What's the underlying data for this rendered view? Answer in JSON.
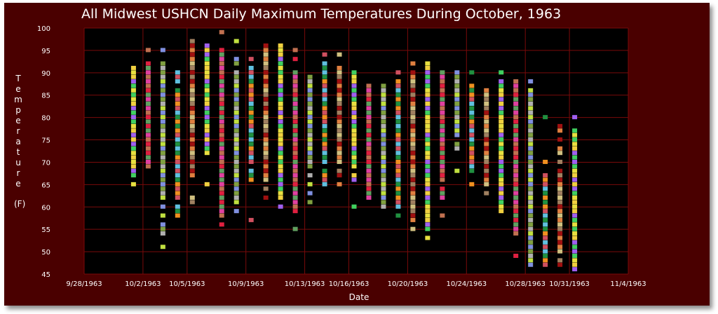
{
  "chart_data": {
    "type": "scatter",
    "title": "All Midwest USHCN Daily Maximum Temperatures During October, 1963",
    "xlabel": "Date",
    "ylabel_chars": [
      "T",
      "e",
      "m",
      "p",
      "e",
      "r",
      "a",
      "t",
      "u",
      "r",
      "e"
    ],
    "ylabel_unit": "(F)",
    "xlim": [
      "1963-09-28",
      "1963-11-04"
    ],
    "ylim": [
      45,
      100
    ],
    "x_ticks": [
      "9/28/1963",
      "10/2/1963",
      "10/5/1963",
      "10/9/1963",
      "10/13/1963",
      "10/16/1963",
      "10/20/1963",
      "10/24/1963",
      "10/28/1963",
      "10/31/1963",
      "11/4/1963"
    ],
    "x_tick_dates": [
      "1963-09-28",
      "1963-10-02",
      "1963-10-05",
      "1963-10-09",
      "1963-10-13",
      "1963-10-16",
      "1963-10-20",
      "1963-10-24",
      "1963-10-28",
      "1963-10-31",
      "1963-11-04"
    ],
    "y_ticks": [
      45,
      50,
      55,
      60,
      65,
      70,
      75,
      80,
      85,
      90,
      95,
      100
    ],
    "grid": true,
    "marker_colors": [
      "#e8e040",
      "#f09020",
      "#e02040",
      "#a01010",
      "#80a040",
      "#40d060",
      "#209040",
      "#c07050",
      "#a08060",
      "#8090e0",
      "#a060f0",
      "#60c0e0",
      "#e040a0",
      "#d0c080",
      "#c0e040",
      "#f0d040",
      "#d05060",
      "#60a060",
      "#e08040",
      "#b0b0b0"
    ],
    "columns": [
      {
        "date": "1963-10-01",
        "values": [
          65,
          67,
          68,
          69,
          70,
          71,
          72,
          73,
          74,
          75,
          76,
          77,
          78,
          79,
          80,
          81,
          82,
          83,
          84,
          85,
          86,
          87,
          88,
          89,
          90,
          91
        ]
      },
      {
        "date": "1963-10-02",
        "values": [
          69,
          70,
          71,
          72,
          73,
          74,
          75,
          76,
          77,
          78,
          79,
          80,
          81,
          82,
          83,
          84,
          85,
          86,
          87,
          88,
          89,
          90,
          91,
          92,
          95
        ]
      },
      {
        "date": "1963-10-03",
        "values": [
          51,
          54,
          55,
          56,
          58,
          60,
          62,
          63,
          64,
          65,
          66,
          67,
          68,
          69,
          70,
          71,
          72,
          73,
          74,
          75,
          76,
          77,
          78,
          79,
          80,
          81,
          82,
          83,
          84,
          85,
          86,
          87,
          88,
          89,
          90,
          91,
          92,
          95
        ]
      },
      {
        "date": "1963-10-04",
        "values": [
          58,
          59,
          60,
          62,
          63,
          64,
          65,
          66,
          67,
          68,
          69,
          70,
          71,
          72,
          73,
          74,
          75,
          76,
          77,
          78,
          79,
          80,
          81,
          82,
          83,
          84,
          85,
          86,
          88,
          89,
          90
        ]
      },
      {
        "date": "1963-10-05",
        "values": [
          61,
          62,
          67,
          68,
          69,
          70,
          71,
          72,
          73,
          74,
          75,
          76,
          77,
          78,
          79,
          80,
          81,
          82,
          83,
          84,
          85,
          86,
          87,
          88,
          89,
          90,
          91,
          92,
          93,
          94,
          95,
          96,
          97
        ]
      },
      {
        "date": "1963-10-06",
        "values": [
          65,
          72,
          73,
          74,
          75,
          76,
          77,
          78,
          79,
          80,
          81,
          82,
          83,
          84,
          85,
          86,
          87,
          88,
          89,
          90,
          91,
          92,
          93,
          94,
          95,
          96
        ]
      },
      {
        "date": "1963-10-07",
        "values": [
          56,
          58,
          59,
          60,
          61,
          62,
          63,
          64,
          65,
          66,
          67,
          68,
          69,
          70,
          71,
          72,
          73,
          74,
          75,
          76,
          77,
          78,
          79,
          80,
          81,
          82,
          83,
          84,
          85,
          86,
          87,
          88,
          89,
          90,
          91,
          92,
          93,
          94,
          95,
          99
        ]
      },
      {
        "date": "1963-10-08",
        "values": [
          59,
          61,
          62,
          63,
          64,
          65,
          66,
          67,
          68,
          69,
          70,
          71,
          72,
          73,
          74,
          75,
          76,
          77,
          78,
          79,
          80,
          81,
          82,
          83,
          84,
          85,
          86,
          87,
          88,
          89,
          90,
          92,
          93,
          97
        ]
      },
      {
        "date": "1963-10-09",
        "values": [
          57,
          66,
          67,
          68,
          70,
          71,
          72,
          73,
          74,
          75,
          76,
          77,
          78,
          79,
          80,
          81,
          82,
          83,
          84,
          85,
          86,
          87,
          88,
          89,
          90,
          91,
          93
        ]
      },
      {
        "date": "1963-10-10",
        "values": [
          62,
          64,
          66,
          67,
          68,
          69,
          70,
          71,
          72,
          73,
          74,
          75,
          76,
          77,
          78,
          79,
          80,
          81,
          82,
          83,
          84,
          85,
          86,
          87,
          88,
          89,
          90,
          91,
          92,
          93,
          94,
          95,
          96
        ]
      },
      {
        "date": "1963-10-11",
        "values": [
          60,
          62,
          63,
          64,
          65,
          66,
          67,
          68,
          69,
          70,
          71,
          72,
          73,
          74,
          75,
          76,
          77,
          78,
          79,
          80,
          81,
          82,
          83,
          84,
          85,
          86,
          87,
          88,
          89,
          90,
          91,
          92,
          93,
          94,
          95,
          96
        ]
      },
      {
        "date": "1963-10-12",
        "values": [
          55,
          59,
          60,
          61,
          62,
          63,
          64,
          65,
          66,
          67,
          68,
          69,
          70,
          71,
          72,
          73,
          74,
          75,
          76,
          77,
          78,
          79,
          80,
          81,
          82,
          83,
          84,
          85,
          86,
          87,
          88,
          89,
          90,
          93,
          95
        ]
      },
      {
        "date": "1963-10-13",
        "values": [
          61,
          63,
          65,
          67,
          69,
          70,
          71,
          72,
          73,
          74,
          75,
          76,
          77,
          78,
          79,
          80,
          81,
          82,
          83,
          84,
          85,
          86,
          87,
          88,
          89
        ]
      },
      {
        "date": "1963-10-14",
        "values": [
          65,
          66,
          67,
          68,
          70,
          71,
          72,
          73,
          74,
          75,
          76,
          77,
          78,
          79,
          80,
          81,
          82,
          83,
          84,
          85,
          86,
          87,
          88,
          89,
          90,
          91,
          92,
          94
        ]
      },
      {
        "date": "1963-10-15",
        "values": [
          65,
          67,
          68,
          70,
          71,
          72,
          73,
          74,
          75,
          76,
          77,
          78,
          79,
          80,
          81,
          82,
          83,
          84,
          85,
          86,
          87,
          88,
          89,
          90,
          91,
          94
        ]
      },
      {
        "date": "1963-10-16",
        "values": [
          60,
          66,
          67,
          69,
          70,
          71,
          72,
          73,
          74,
          75,
          76,
          77,
          78,
          79,
          80,
          81,
          82,
          83,
          84,
          85,
          86,
          87,
          88,
          89,
          90
        ]
      },
      {
        "date": "1963-10-17",
        "values": [
          62,
          63,
          64,
          65,
          66,
          67,
          68,
          69,
          70,
          71,
          72,
          73,
          74,
          75,
          76,
          77,
          78,
          79,
          80,
          81,
          82,
          83,
          84,
          85,
          86,
          87
        ]
      },
      {
        "date": "1963-10-18",
        "values": [
          60,
          61,
          62,
          63,
          64,
          65,
          66,
          67,
          68,
          69,
          70,
          71,
          72,
          73,
          74,
          75,
          76,
          77,
          78,
          79,
          80,
          81,
          82,
          83,
          84,
          85,
          86,
          87
        ]
      },
      {
        "date": "1963-10-19",
        "values": [
          58,
          60,
          61,
          62,
          63,
          64,
          65,
          66,
          67,
          68,
          69,
          70,
          71,
          72,
          73,
          74,
          75,
          76,
          77,
          78,
          79,
          80,
          81,
          82,
          83,
          84,
          85,
          86,
          87,
          88,
          90
        ]
      },
      {
        "date": "1963-10-20",
        "values": [
          55,
          57,
          58,
          59,
          60,
          61,
          62,
          63,
          64,
          65,
          66,
          67,
          68,
          69,
          70,
          71,
          72,
          73,
          74,
          75,
          76,
          77,
          78,
          79,
          80,
          81,
          82,
          83,
          84,
          85,
          86,
          87,
          88,
          89,
          90,
          92
        ]
      },
      {
        "date": "1963-10-21",
        "values": [
          53,
          55,
          56,
          57,
          58,
          59,
          60,
          61,
          62,
          63,
          64,
          65,
          66,
          67,
          68,
          69,
          70,
          71,
          72,
          73,
          74,
          75,
          76,
          77,
          78,
          79,
          80,
          81,
          82,
          83,
          84,
          85,
          86,
          87,
          88,
          89,
          90,
          91,
          92
        ]
      },
      {
        "date": "1963-10-22",
        "values": [
          58,
          62,
          63,
          64,
          66,
          67,
          68,
          69,
          70,
          71,
          72,
          73,
          74,
          75,
          76,
          77,
          78,
          79,
          80,
          81,
          82,
          83,
          84,
          85,
          86,
          87,
          88,
          89,
          90
        ]
      },
      {
        "date": "1963-10-23",
        "values": [
          68,
          73,
          74,
          76,
          77,
          78,
          79,
          80,
          81,
          82,
          83,
          84,
          85,
          86,
          87,
          88,
          89,
          90
        ]
      },
      {
        "date": "1963-10-24",
        "values": [
          65,
          68,
          69,
          70,
          71,
          72,
          73,
          74,
          75,
          76,
          77,
          78,
          79,
          80,
          81,
          82,
          83,
          84,
          85,
          86,
          87,
          90
        ]
      },
      {
        "date": "1963-10-25",
        "values": [
          63,
          65,
          66,
          67,
          68,
          69,
          70,
          71,
          72,
          73,
          74,
          75,
          76,
          77,
          78,
          79,
          80,
          81,
          82,
          83,
          84,
          85,
          86
        ]
      },
      {
        "date": "1963-10-26",
        "values": [
          59,
          60,
          61,
          62,
          63,
          64,
          65,
          66,
          67,
          68,
          69,
          70,
          71,
          72,
          73,
          74,
          75,
          76,
          77,
          78,
          79,
          80,
          81,
          82,
          83,
          84,
          85,
          86,
          87,
          88,
          90
        ]
      },
      {
        "date": "1963-10-27",
        "values": [
          49,
          54,
          55,
          56,
          57,
          58,
          59,
          60,
          61,
          62,
          63,
          64,
          65,
          66,
          67,
          68,
          69,
          70,
          71,
          72,
          73,
          74,
          75,
          76,
          77,
          78,
          79,
          80,
          81,
          82,
          83,
          84,
          85,
          86,
          87,
          88
        ]
      },
      {
        "date": "1963-10-28",
        "values": [
          47,
          48,
          49,
          50,
          51,
          52,
          53,
          54,
          55,
          56,
          57,
          58,
          59,
          60,
          61,
          62,
          63,
          64,
          65,
          66,
          67,
          68,
          69,
          70,
          71,
          72,
          73,
          74,
          75,
          76,
          77,
          78,
          79,
          80,
          81,
          82,
          83,
          84,
          85,
          86,
          88
        ]
      },
      {
        "date": "1963-10-29",
        "values": [
          47,
          48,
          49,
          50,
          51,
          52,
          53,
          54,
          55,
          56,
          57,
          58,
          59,
          60,
          61,
          62,
          63,
          64,
          65,
          66,
          67,
          70,
          80
        ]
      },
      {
        "date": "1963-10-30",
        "values": [
          47,
          48,
          50,
          51,
          52,
          53,
          54,
          55,
          56,
          57,
          58,
          59,
          60,
          61,
          62,
          63,
          64,
          65,
          66,
          67,
          68,
          70,
          72,
          73,
          75,
          77,
          78
        ]
      },
      {
        "date": "1963-10-31",
        "values": [
          46,
          47,
          48,
          49,
          50,
          51,
          52,
          53,
          54,
          55,
          56,
          57,
          58,
          59,
          60,
          61,
          62,
          63,
          64,
          65,
          66,
          67,
          68,
          69,
          70,
          71,
          72,
          73,
          74,
          75,
          76,
          77,
          80
        ]
      }
    ]
  }
}
